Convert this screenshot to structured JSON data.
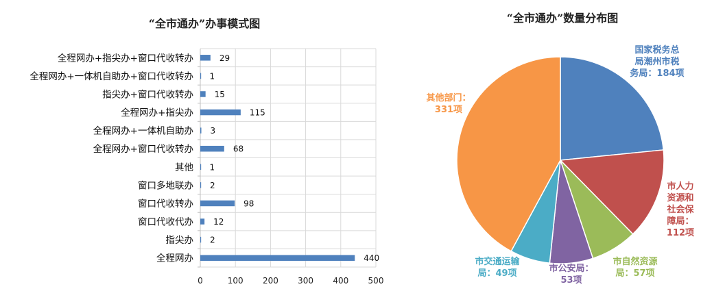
{
  "chart_data": [
    {
      "type": "bar",
      "orientation": "horizontal",
      "title": "“全市通办”办事模式图",
      "categories": [
        "全程网办+指尖办+窗口代收转办",
        "全程网办+一体机自助办+窗口代收转办",
        "指尖办+窗口代收转办",
        "全程网办+指尖办",
        "全程网办+一体机自助办",
        "全程网办+窗口代收转办",
        "其他",
        "窗口多地联办",
        "窗口代收转办",
        "窗口代收代办",
        "指尖办",
        "全程网办"
      ],
      "values": [
        29,
        1,
        15,
        115,
        3,
        68,
        1,
        2,
        98,
        12,
        2,
        440
      ],
      "xlim": [
        0,
        500
      ],
      "xticks": [
        0,
        100,
        200,
        300,
        400,
        500
      ],
      "grid": true,
      "bar_color": "#4F81BD"
    },
    {
      "type": "pie",
      "title": "“全市通办”数量分布图",
      "slices": [
        {
          "label": "国家税务总局潮州市税务局：184项",
          "value": 184,
          "color": "#4F81BD",
          "label_color": "#4F81BD",
          "lines": [
            "国家税务总",
            "局潮州市税",
            "务局：184项"
          ]
        },
        {
          "label": "市人力资源和社会保障局：112项",
          "value": 112,
          "color": "#C0504D",
          "label_color": "#C0504D",
          "lines": [
            "市人力",
            "资源和",
            "社会保",
            "障局：",
            "112项"
          ]
        },
        {
          "label": "市自然资源局：57项",
          "value": 57,
          "color": "#9BBB59",
          "label_color": "#9BBB59",
          "lines": [
            "市自然资源",
            "局：57项"
          ]
        },
        {
          "label": "市公安局：53项",
          "value": 53,
          "color": "#8064A2",
          "label_color": "#8064A2",
          "lines": [
            "市公安局：",
            "53项"
          ]
        },
        {
          "label": "市交通运输局：49项",
          "value": 49,
          "color": "#4BACC6",
          "label_color": "#4BACC6",
          "lines": [
            "市交通运输",
            "局：49项"
          ]
        },
        {
          "label": "其他部门：331项",
          "value": 331,
          "color": "#F79646",
          "label_color": "#F79646",
          "lines": [
            "其他部门：",
            "331项"
          ]
        }
      ]
    }
  ]
}
